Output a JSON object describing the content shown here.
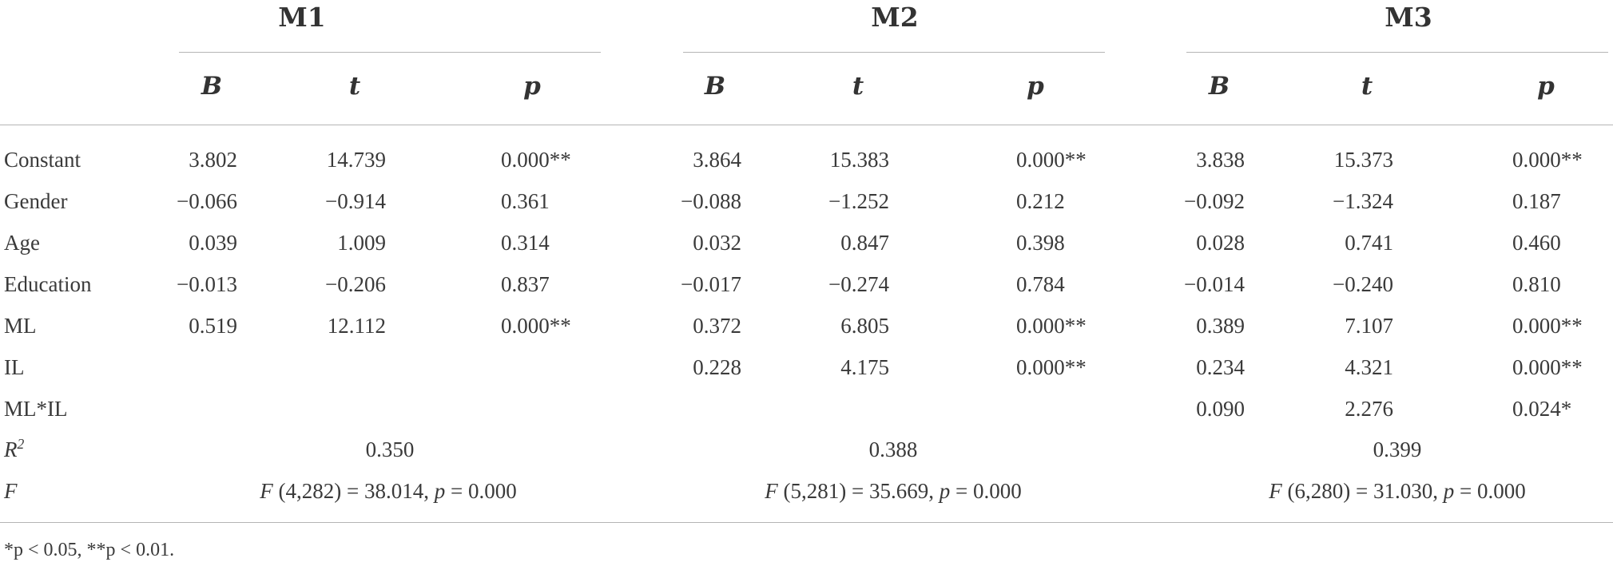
{
  "models": [
    {
      "name": "M1",
      "cols": [
        "B",
        "t",
        "p"
      ]
    },
    {
      "name": "M2",
      "cols": [
        "B",
        "t",
        "p"
      ]
    },
    {
      "name": "M3",
      "cols": [
        "B",
        "t",
        "p"
      ]
    }
  ],
  "rows": [
    {
      "label": "Constant",
      "m1": [
        "3.802",
        "14.739",
        "0.000**"
      ],
      "m2": [
        "3.864",
        "15.383",
        "0.000**"
      ],
      "m3": [
        "3.838",
        "15.373",
        "0.000**"
      ]
    },
    {
      "label": "Gender",
      "m1": [
        "−0.066",
        "−0.914",
        "0.361"
      ],
      "m2": [
        "−0.088",
        "−1.252",
        "0.212"
      ],
      "m3": [
        "−0.092",
        "−1.324",
        "0.187"
      ]
    },
    {
      "label": "Age",
      "m1": [
        "0.039",
        "1.009",
        "0.314"
      ],
      "m2": [
        "0.032",
        "0.847",
        "0.398"
      ],
      "m3": [
        "0.028",
        "0.741",
        "0.460"
      ]
    },
    {
      "label": "Education",
      "m1": [
        "−0.013",
        "−0.206",
        "0.837"
      ],
      "m2": [
        "−0.017",
        "−0.274",
        "0.784"
      ],
      "m3": [
        "−0.014",
        "−0.240",
        "0.810"
      ]
    },
    {
      "label": "ML",
      "m1": [
        "0.519",
        "12.112",
        "0.000**"
      ],
      "m2": [
        "0.372",
        "6.805",
        "0.000**"
      ],
      "m3": [
        "0.389",
        "7.107",
        "0.000**"
      ]
    },
    {
      "label": "IL",
      "m1": [
        "",
        "",
        ""
      ],
      "m2": [
        "0.228",
        "4.175",
        "0.000**"
      ],
      "m3": [
        "0.234",
        "4.321",
        "0.000**"
      ]
    },
    {
      "label": "ML*IL",
      "m1": [
        "",
        "",
        ""
      ],
      "m2": [
        "",
        "",
        ""
      ],
      "m3": [
        "0.090",
        "2.276",
        "0.024*"
      ]
    }
  ],
  "r2": {
    "label": "R",
    "sup": "2",
    "m1": "0.350",
    "m2": "0.388",
    "m3": "0.399"
  },
  "f": {
    "label": "F",
    "m1": {
      "df": " (4,282) = 38.014, ",
      "p": " = 0.000"
    },
    "m2": {
      "df": " (5,281) = 35.669, ",
      "p": " = 0.000"
    },
    "m3": {
      "df": " (6,280) = 31.030, ",
      "p": " = 0.000"
    },
    "f_symbol": "F",
    "p_symbol": "p"
  },
  "note": "*p < 0.05, **p < 0.01."
}
